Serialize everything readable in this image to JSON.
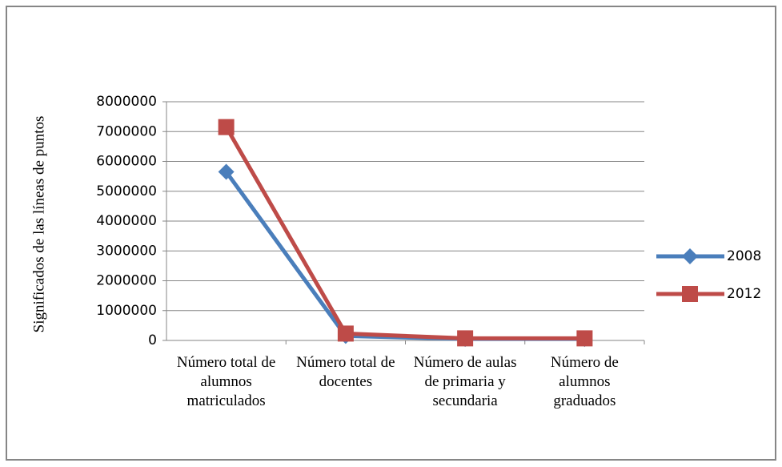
{
  "chart_data": {
    "type": "line",
    "y_label": "Significados de las líneas de puntos",
    "categories": [
      "Número total de alumnos matriculados",
      "Número total de docentes",
      "Número de aulas de primaria y secundaria",
      "Número de alumnos graduados"
    ],
    "series": [
      {
        "name": "2008",
        "color": "#4a7ebb",
        "marker": "diamond",
        "values": [
          5650000,
          150000,
          50000,
          50000
        ]
      },
      {
        "name": "2012",
        "color": "#be4b48",
        "marker": "square",
        "values": [
          7150000,
          230000,
          70000,
          70000
        ]
      }
    ],
    "ylim": [
      0,
      8000000
    ],
    "yticks": [
      0,
      1000000,
      2000000,
      3000000,
      4000000,
      5000000,
      6000000,
      7000000,
      8000000
    ],
    "grid": true,
    "legend": "right"
  }
}
